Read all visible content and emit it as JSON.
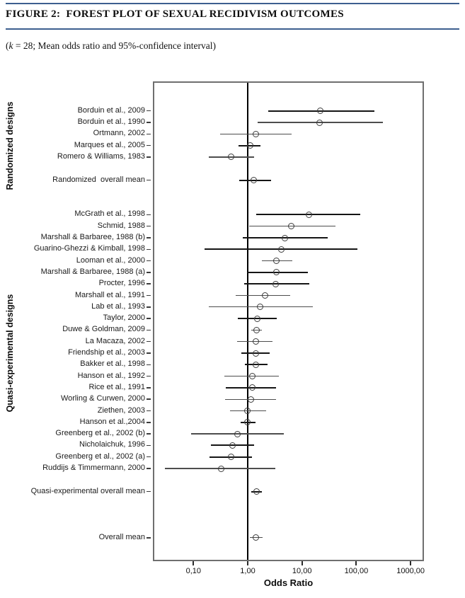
{
  "header": {
    "title": "FIGURE 2:  FOREST PLOT OF SEXUAL RECIDIVISM OUTCOMES"
  },
  "subtitle": {
    "open": "(",
    "k": "k",
    "rest": " = 28; Mean odds ratio and 95%-confidence interval)"
  },
  "chart_data": {
    "type": "forest",
    "title": "Forest plot of sexual recidivism outcomes",
    "k": 28,
    "x_axis": {
      "label": "Odds Ratio",
      "scale": "log10",
      "ticks": [
        {
          "value": 0.1,
          "label": "0,10"
        },
        {
          "value": 1,
          "label": "1,00"
        },
        {
          "value": 10,
          "label": "10,00"
        },
        {
          "value": 100,
          "label": "100,00"
        },
        {
          "value": 1000,
          "label": "1000,00"
        }
      ]
    },
    "reference_line": 1,
    "marker": "open-circle",
    "colors": {
      "line_heavy": "#151515",
      "line_light": "#4d4d4d",
      "marker_stroke": "#3c3c3c",
      "reference_line": "#000000",
      "header_rule": "#3d5f8f"
    },
    "groups": [
      {
        "name": "Randomized designs",
        "rows": [
          {
            "slot": 0,
            "label": "Borduin et al., 2009",
            "or": 22,
            "ci_low": 2.4,
            "ci_high": 215,
            "weight": 2
          },
          {
            "slot": 1,
            "label": "Borduin et al., 1990",
            "or": 21,
            "ci_low": 1.5,
            "ci_high": 310,
            "weight": 1
          },
          {
            "slot": 2,
            "label": "Ortmann, 2002",
            "or": 1.4,
            "ci_low": 0.31,
            "ci_high": 6.5,
            "weight": 1
          },
          {
            "slot": 3,
            "label": "Marques et al., 2005",
            "or": 1.1,
            "ci_low": 0.68,
            "ci_high": 1.7,
            "weight": 2
          },
          {
            "slot": 4,
            "label": "Romero & Williams, 1983",
            "or": 0.5,
            "ci_low": 0.19,
            "ci_high": 1.3,
            "weight": 1
          },
          {
            "slot": 6,
            "label": "Randomized  overall mean",
            "or": 1.3,
            "ci_low": 0.7,
            "ci_high": 2.7,
            "weight": 2
          }
        ]
      },
      {
        "name": "Quasi-experimental designs",
        "rows": [
          {
            "slot": 9,
            "label": "McGrath et al., 1998",
            "or": 13.3,
            "ci_low": 1.45,
            "ci_high": 120,
            "weight": 2
          },
          {
            "slot": 10,
            "label": "Schmid, 1988",
            "or": 6.4,
            "ci_low": 1.07,
            "ci_high": 42,
            "weight": 1
          },
          {
            "slot": 11,
            "label": "Marshall & Barbaree, 1988 (b)",
            "or": 4.9,
            "ci_low": 0.8,
            "ci_high": 30,
            "weight": 2
          },
          {
            "slot": 12,
            "label": "Guarino-Ghezzi & Kimball, 1998",
            "or": 4.2,
            "ci_low": 0.16,
            "ci_high": 106,
            "weight": 2
          },
          {
            "slot": 13,
            "label": "Looman et al., 2000",
            "or": 3.4,
            "ci_low": 1.8,
            "ci_high": 6.7,
            "weight": 1
          },
          {
            "slot": 14,
            "label": "Marshall & Barbaree, 1988 (a)",
            "or": 3.4,
            "ci_low": 1.0,
            "ci_high": 12.9,
            "weight": 2
          },
          {
            "slot": 15,
            "label": "Procter, 1996",
            "or": 3.3,
            "ci_low": 0.86,
            "ci_high": 13.6,
            "weight": 2
          },
          {
            "slot": 16,
            "label": "Marshall et al., 1991",
            "or": 2.1,
            "ci_low": 0.6,
            "ci_high": 6.1,
            "weight": 1
          },
          {
            "slot": 17,
            "label": "Lab et al., 1993",
            "or": 1.7,
            "ci_low": 0.19,
            "ci_high": 15.8,
            "weight": 1
          },
          {
            "slot": 18,
            "label": "Taylor, 2000",
            "or": 1.5,
            "ci_low": 0.65,
            "ci_high": 3.4,
            "weight": 2
          },
          {
            "slot": 19,
            "label": "Duwe & Goldman, 2009",
            "or": 1.45,
            "ci_low": 1.15,
            "ci_high": 1.85,
            "weight": 1
          },
          {
            "slot": 20,
            "label": "La Macaza, 2002",
            "or": 1.4,
            "ci_low": 0.63,
            "ci_high": 2.9,
            "weight": 1
          },
          {
            "slot": 21,
            "label": "Friendship et al., 2003",
            "or": 1.4,
            "ci_low": 0.76,
            "ci_high": 2.5,
            "weight": 2
          },
          {
            "slot": 22,
            "label": "Bakker et al., 1998",
            "or": 1.4,
            "ci_low": 0.88,
            "ci_high": 2.3,
            "weight": 2
          },
          {
            "slot": 23,
            "label": "Hanson et al., 1992",
            "or": 1.2,
            "ci_low": 0.37,
            "ci_high": 3.8,
            "weight": 1
          },
          {
            "slot": 24,
            "label": "Rice et al., 1991",
            "or": 1.2,
            "ci_low": 0.4,
            "ci_high": 3.3,
            "weight": 2
          },
          {
            "slot": 25,
            "label": "Worling & Curwen, 2000",
            "or": 1.13,
            "ci_low": 0.38,
            "ci_high": 3.3,
            "weight": 1
          },
          {
            "slot": 26,
            "label": "Ziethen, 2003",
            "or": 0.98,
            "ci_low": 0.47,
            "ci_high": 2.2,
            "weight": 1
          },
          {
            "slot": 27,
            "label": "Hanson et al.,2004",
            "or": 0.98,
            "ci_low": 0.73,
            "ci_high": 1.4,
            "weight": 2
          },
          {
            "slot": 28,
            "label": "Greenberg et al., 2002 (b)",
            "or": 0.65,
            "ci_low": 0.09,
            "ci_high": 4.6,
            "weight": 1
          },
          {
            "slot": 29,
            "label": "Nicholaichuk, 1996",
            "or": 0.52,
            "ci_low": 0.21,
            "ci_high": 1.3,
            "weight": 2
          },
          {
            "slot": 30,
            "label": "Greenberg et al., 2002 (a)",
            "or": 0.49,
            "ci_low": 0.2,
            "ci_high": 1.2,
            "weight": 2
          },
          {
            "slot": 31,
            "label": "Ruddijs & Timmermann, 2000",
            "or": 0.32,
            "ci_low": 0.03,
            "ci_high": 3.2,
            "weight": 1
          },
          {
            "slot": 33,
            "label": "Quasi-experimental overall mean",
            "or": 1.45,
            "ci_low": 1.15,
            "ci_high": 1.8,
            "weight": 2
          }
        ]
      },
      {
        "name": "",
        "rows": [
          {
            "slot": 37,
            "label": "Overall mean",
            "or": 1.4,
            "ci_low": 1.1,
            "ci_high": 1.9,
            "weight": 1
          }
        ]
      }
    ]
  }
}
